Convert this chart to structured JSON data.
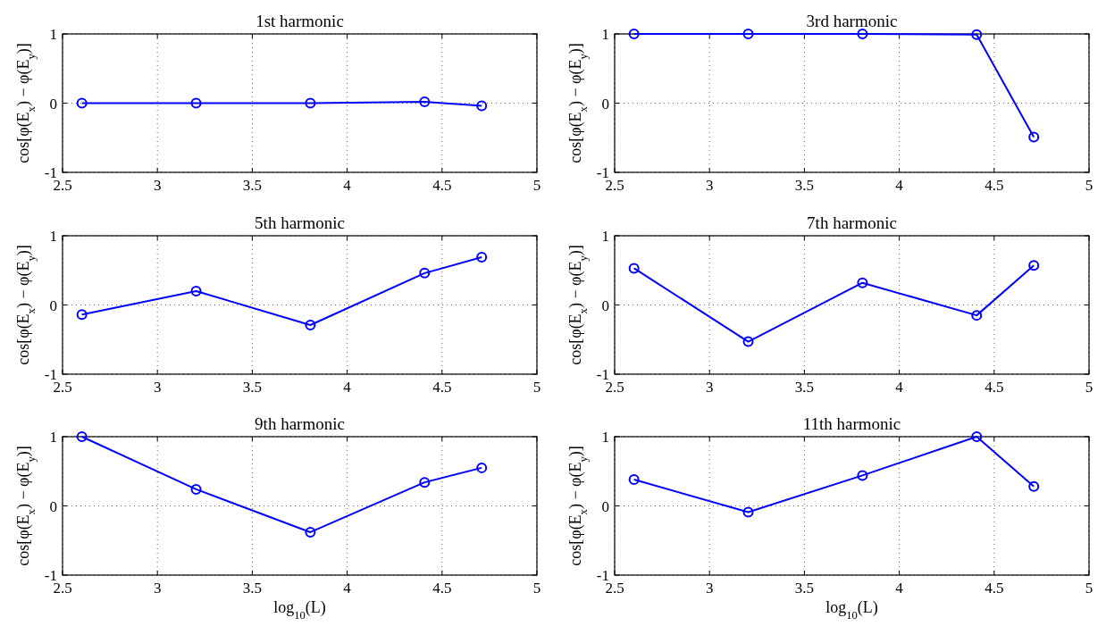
{
  "chart_data": [
    {
      "type": "line",
      "title": "1st harmonic",
      "ylabel": "cos[φ(E$_{x}$) − φ(E$_{y}$)]",
      "x": [
        2.602,
        3.204,
        3.806,
        4.408,
        4.709
      ],
      "series": [
        {
          "color": "#0000ff",
          "values": [
            0,
            0,
            0,
            0.02,
            -0.04
          ]
        }
      ],
      "xlim": [
        2.5,
        5
      ],
      "xticks": [
        2.5,
        3,
        3.5,
        4,
        4.5,
        5
      ],
      "ylim": [
        -1,
        1
      ],
      "yticks": [
        -1,
        0,
        1
      ],
      "grid": true,
      "marker": "circle",
      "line_style": "solid"
    },
    {
      "type": "line",
      "title": "3rd harmonic",
      "ylabel": "cos[φ(E$_{x}$) − φ(E$_{y}$)]",
      "x": [
        2.602,
        3.204,
        3.806,
        4.408,
        4.709
      ],
      "series": [
        {
          "color": "#0000ff",
          "values": [
            1,
            1,
            1,
            0.99,
            -0.49
          ]
        }
      ],
      "xlim": [
        2.5,
        5
      ],
      "xticks": [
        2.5,
        3,
        3.5,
        4,
        4.5,
        5
      ],
      "ylim": [
        -1,
        1
      ],
      "yticks": [
        -1,
        0,
        1
      ],
      "grid": true,
      "marker": "circle",
      "line_style": "solid"
    },
    {
      "type": "line",
      "title": "5th harmonic",
      "ylabel": "cos[φ(E$_{x}$) − φ(E$_{y}$)]",
      "x": [
        2.602,
        3.204,
        3.806,
        4.408,
        4.709
      ],
      "series": [
        {
          "color": "#0000ff",
          "values": [
            -0.14,
            0.2,
            -0.29,
            0.46,
            0.69
          ]
        }
      ],
      "xlim": [
        2.5,
        5
      ],
      "xticks": [
        2.5,
        3,
        3.5,
        4,
        4.5,
        5
      ],
      "ylim": [
        -1,
        1
      ],
      "yticks": [
        -1,
        0,
        1
      ],
      "grid": true,
      "marker": "circle",
      "line_style": "solid"
    },
    {
      "type": "line",
      "title": "7th harmonic",
      "ylabel": "cos[φ(E$_{x}$) − φ(E$_{y}$)]",
      "x": [
        2.602,
        3.204,
        3.806,
        4.408,
        4.709
      ],
      "series": [
        {
          "color": "#0000ff",
          "values": [
            0.53,
            -0.53,
            0.32,
            -0.15,
            0.57
          ]
        }
      ],
      "xlim": [
        2.5,
        5
      ],
      "xticks": [
        2.5,
        3,
        3.5,
        4,
        4.5,
        5
      ],
      "ylim": [
        -1,
        1
      ],
      "yticks": [
        -1,
        0,
        1
      ],
      "grid": true,
      "marker": "circle",
      "line_style": "solid"
    },
    {
      "type": "line",
      "title": "9th harmonic",
      "xlabel": "log$_{10}$(L)",
      "ylabel": "cos[φ(E$_{x}$) − φ(E$_{y}$)]",
      "x": [
        2.602,
        3.204,
        3.806,
        4.408,
        4.709
      ],
      "series": [
        {
          "color": "#0000ff",
          "values": [
            1,
            0.24,
            -0.38,
            0.34,
            0.55
          ]
        }
      ],
      "xlim": [
        2.5,
        5
      ],
      "xticks": [
        2.5,
        3,
        3.5,
        4,
        4.5,
        5
      ],
      "ylim": [
        -1,
        1
      ],
      "yticks": [
        -1,
        0,
        1
      ],
      "grid": true,
      "marker": "circle",
      "line_style": "solid"
    },
    {
      "type": "line",
      "title": "11th harmonic",
      "xlabel": "log$_{10}$(L)",
      "ylabel": "cos[φ(E$_{x}$) − φ(E$_{y}$)]",
      "x": [
        2.602,
        3.204,
        3.806,
        4.408,
        4.709
      ],
      "series": [
        {
          "color": "#0000ff",
          "values": [
            0.38,
            -0.09,
            0.44,
            1,
            0.28
          ]
        }
      ],
      "xlim": [
        2.5,
        5
      ],
      "xticks": [
        2.5,
        3,
        3.5,
        4,
        4.5,
        5
      ],
      "ylim": [
        -1,
        1
      ],
      "yticks": [
        -1,
        0,
        1
      ],
      "grid": true,
      "marker": "circle",
      "line_style": "solid"
    }
  ]
}
